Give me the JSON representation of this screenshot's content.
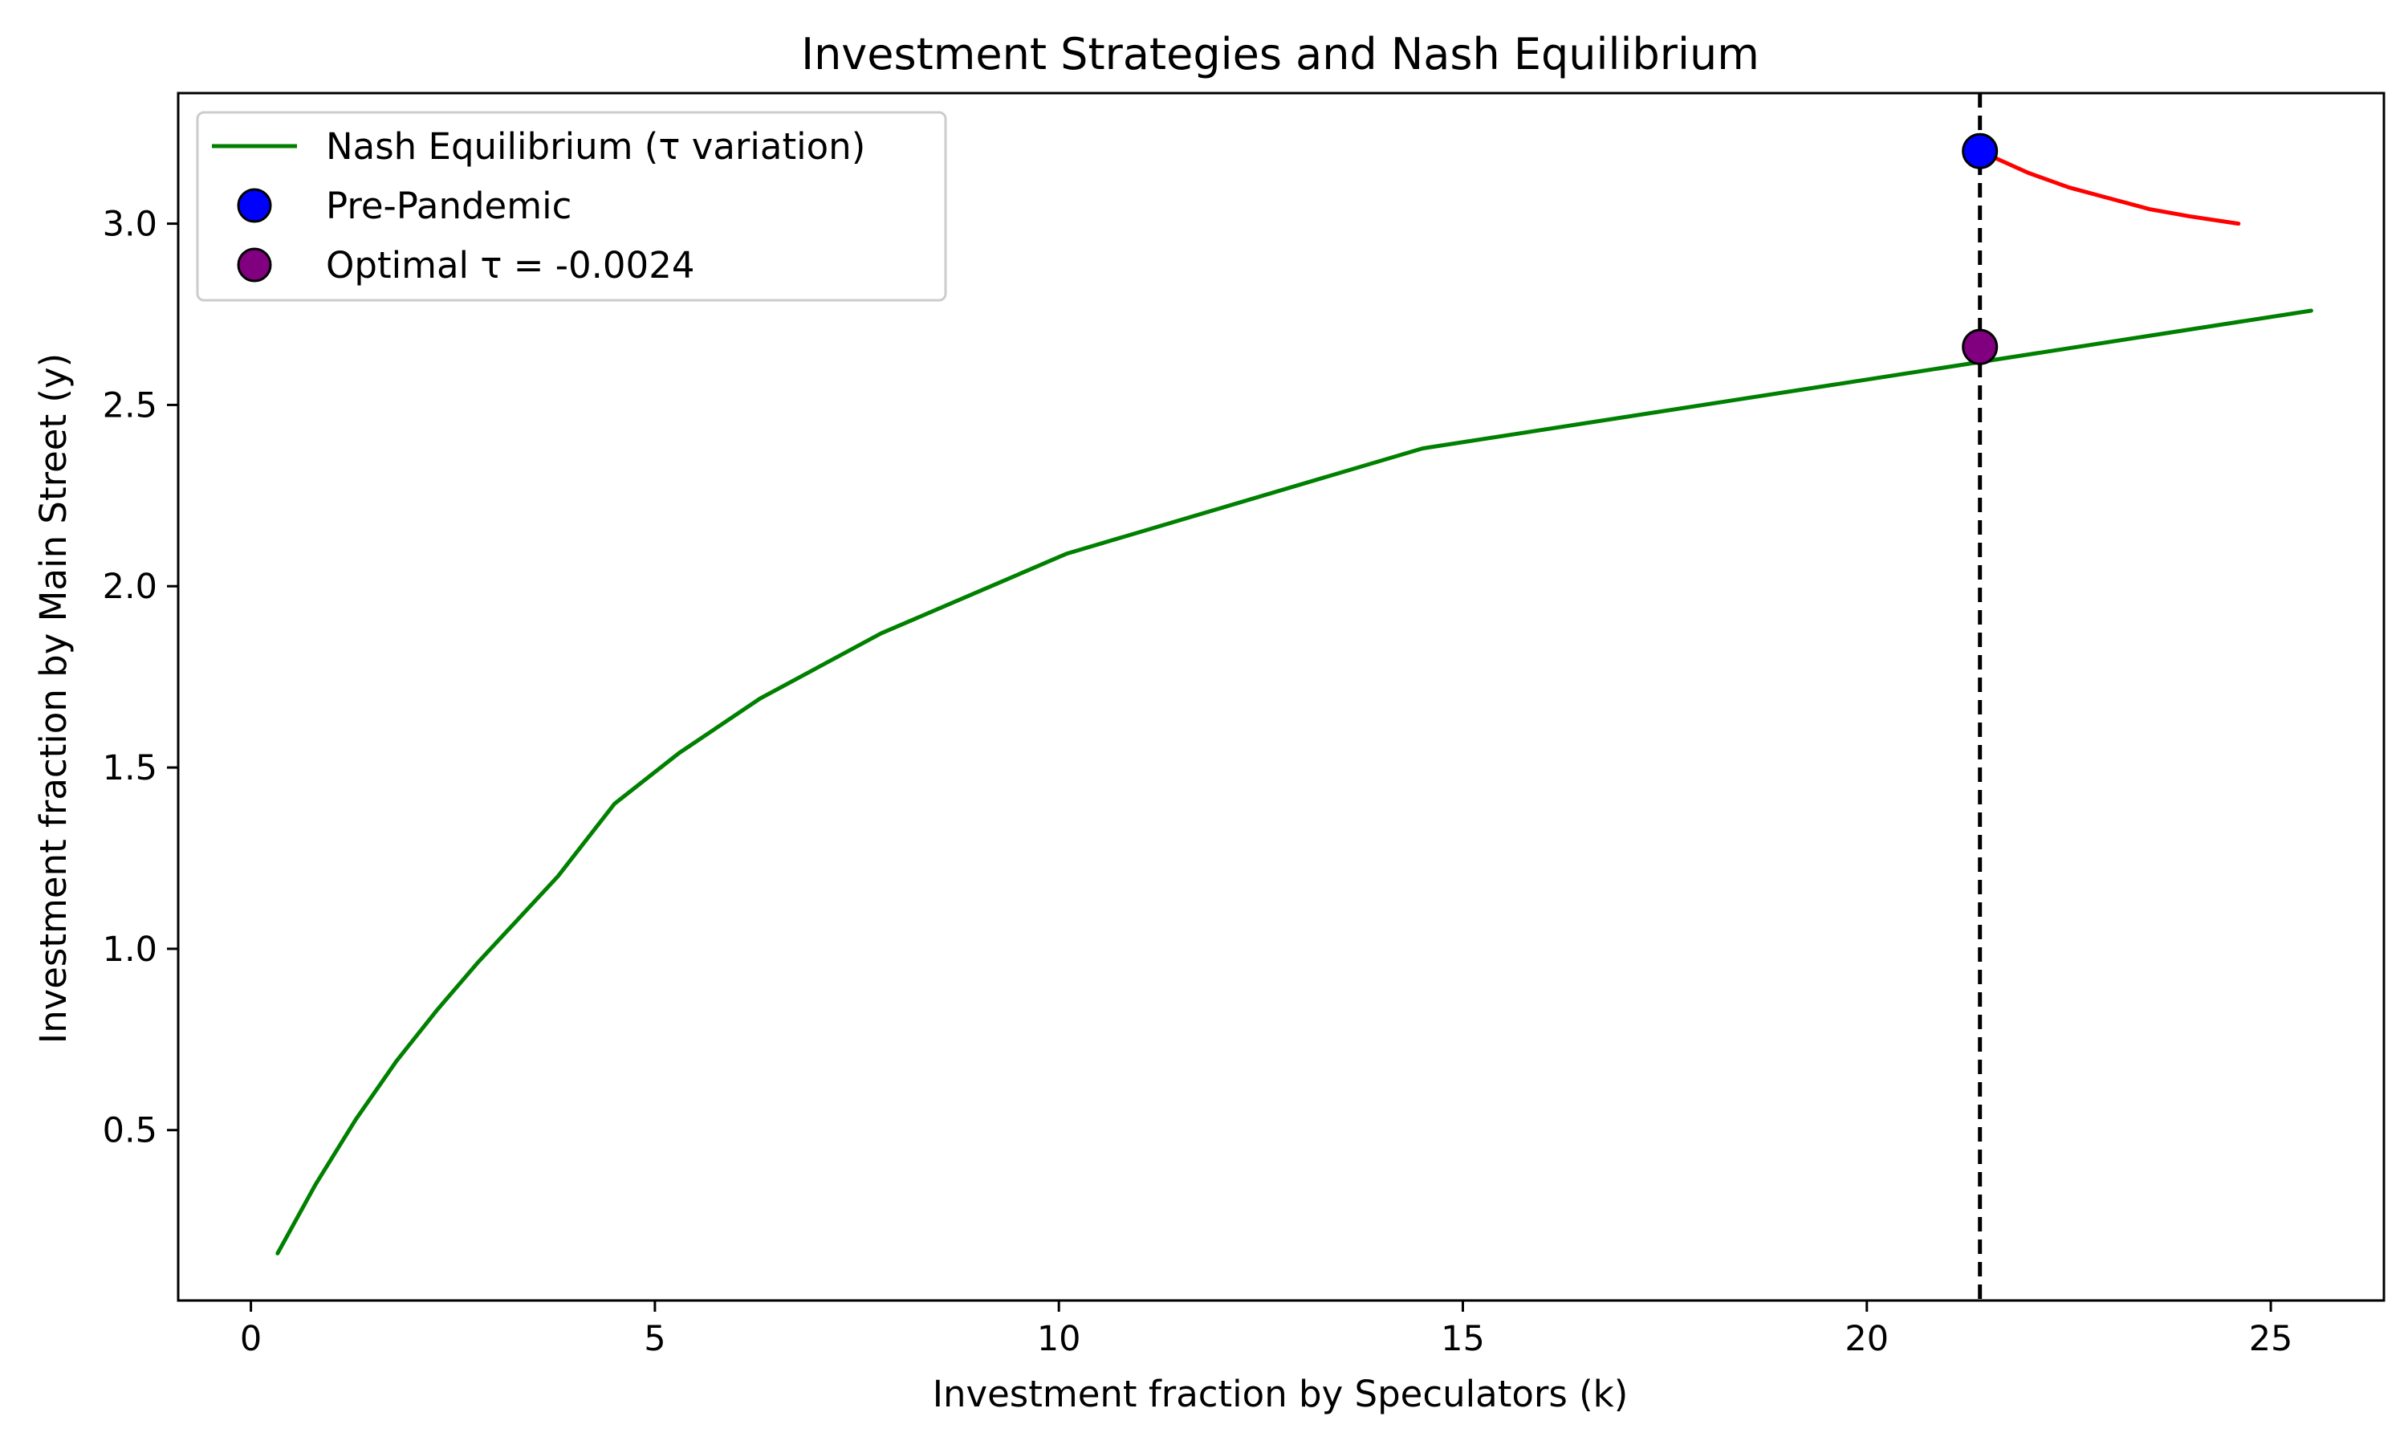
{
  "chart_data": {
    "type": "line",
    "title": "Investment Strategies and Nash Equilibrium",
    "xlabel": "Investment fraction by Speculators (k)",
    "ylabel": "Investment fraction by Main Street (y)",
    "xlim": [
      -0.9,
      26.4
    ],
    "ylim": [
      0.03,
      3.36
    ],
    "x_ticks": [
      0,
      5,
      10,
      15,
      20,
      25
    ],
    "y_ticks": [
      0.5,
      1.0,
      1.5,
      2.0,
      2.5,
      3.0
    ],
    "x_tick_labels": [
      "0",
      "5",
      "10",
      "15",
      "20",
      "25"
    ],
    "y_tick_labels": [
      "0.5",
      "1.0",
      "1.5",
      "2.0",
      "2.5",
      "3.0"
    ],
    "grid": false,
    "legend_position": "top-left",
    "series": [
      {
        "name": "Nash Equilibrium (τ variation)",
        "kind": "line",
        "color": "#008000",
        "points": [
          [
            0.33,
            0.16
          ],
          [
            0.8,
            0.35
          ],
          [
            1.3,
            0.53
          ],
          [
            1.8,
            0.69
          ],
          [
            2.3,
            0.83
          ],
          [
            2.8,
            0.96
          ],
          [
            3.3,
            1.08
          ],
          [
            3.8,
            1.2
          ],
          [
            4.5,
            1.4
          ],
          [
            5.3,
            1.54
          ],
          [
            6.3,
            1.69
          ],
          [
            7.8,
            1.87
          ],
          [
            10.1,
            2.09
          ],
          [
            14.5,
            2.38
          ],
          [
            25.5,
            2.76
          ]
        ]
      },
      {
        "name": "Pre-Pandemic",
        "kind": "scatter",
        "color": "#0000ff",
        "points": [
          [
            21.4,
            3.2
          ]
        ]
      },
      {
        "name": "Optimal τ = -0.0024",
        "kind": "scatter",
        "color": "#800080",
        "points": [
          [
            21.4,
            2.66
          ]
        ]
      }
    ],
    "extra_lines": [
      {
        "kind": "curve",
        "color": "#ff0000",
        "points": [
          [
            21.4,
            3.2
          ],
          [
            22.0,
            3.14
          ],
          [
            22.5,
            3.1
          ],
          [
            23.0,
            3.07
          ],
          [
            23.5,
            3.04
          ],
          [
            24.0,
            3.02
          ],
          [
            24.6,
            3.0
          ]
        ]
      },
      {
        "kind": "vertical-dashed",
        "color": "#000000",
        "x": 21.4
      }
    ]
  }
}
